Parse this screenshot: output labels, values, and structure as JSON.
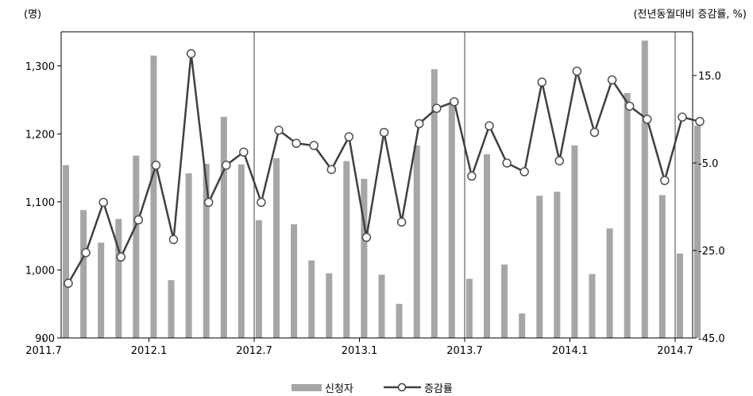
{
  "chart_data": {
    "type": "bar+line",
    "left_unit": "(명)",
    "right_unit": "(전년동월대비 증감률, %)",
    "left_axis": {
      "min": 900,
      "max": 1350,
      "ticks": [
        "900",
        "1,000",
        "1,100",
        "1,200",
        "1,300"
      ],
      "tick_values": [
        900,
        1000,
        1100,
        1200,
        1300
      ]
    },
    "right_axis": {
      "min": -45,
      "max": 25,
      "ticks": [
        "-45.0",
        "-25.0",
        "-5.0",
        "15.0"
      ],
      "tick_values": [
        -45,
        -25,
        -5,
        15
      ]
    },
    "x_ticks": [
      {
        "label": "2011.7",
        "index": 0
      },
      {
        "label": "2012.1",
        "index": 6
      },
      {
        "label": "2012.7",
        "index": 12
      },
      {
        "label": "2013.1",
        "index": 18
      },
      {
        "label": "2013.7",
        "index": 24
      },
      {
        "label": "2014.1",
        "index": 30
      },
      {
        "label": "2014.7",
        "index": 36
      }
    ],
    "separator_indices": [
      12,
      24,
      36
    ],
    "series": [
      {
        "name": "신청자",
        "kind": "bar",
        "color": "#a6a6a6",
        "values": [
          1154,
          1088,
          1040,
          1075,
          1168,
          1315,
          985,
          1142,
          1156,
          1225,
          1155,
          1073,
          1164,
          1067,
          1014,
          995,
          1160,
          1134,
          993,
          950,
          1183,
          1295,
          1244,
          987,
          1170,
          1008,
          936,
          1109,
          1115,
          1183,
          994,
          1061,
          1260,
          1337,
          1110,
          1024,
          1212
        ]
      },
      {
        "name": "증감률",
        "kind": "line",
        "color": "#404040",
        "values": [
          -32.5,
          -25.5,
          -14.0,
          -26.5,
          -18.0,
          -5.5,
          -22.5,
          20.0,
          -14.0,
          -5.5,
          -2.5,
          -14.0,
          2.5,
          -0.5,
          -1.0,
          -6.5,
          1.0,
          -22.0,
          2.0,
          -18.5,
          4.0,
          7.5,
          9.0,
          -8.0,
          3.5,
          -5.0,
          -7.0,
          13.5,
          -4.5,
          16.0,
          2.0,
          14.0,
          8.0,
          5.0,
          -9.0,
          5.5,
          4.5
        ]
      }
    ],
    "legend_position": "bottom-center",
    "grid": false
  }
}
